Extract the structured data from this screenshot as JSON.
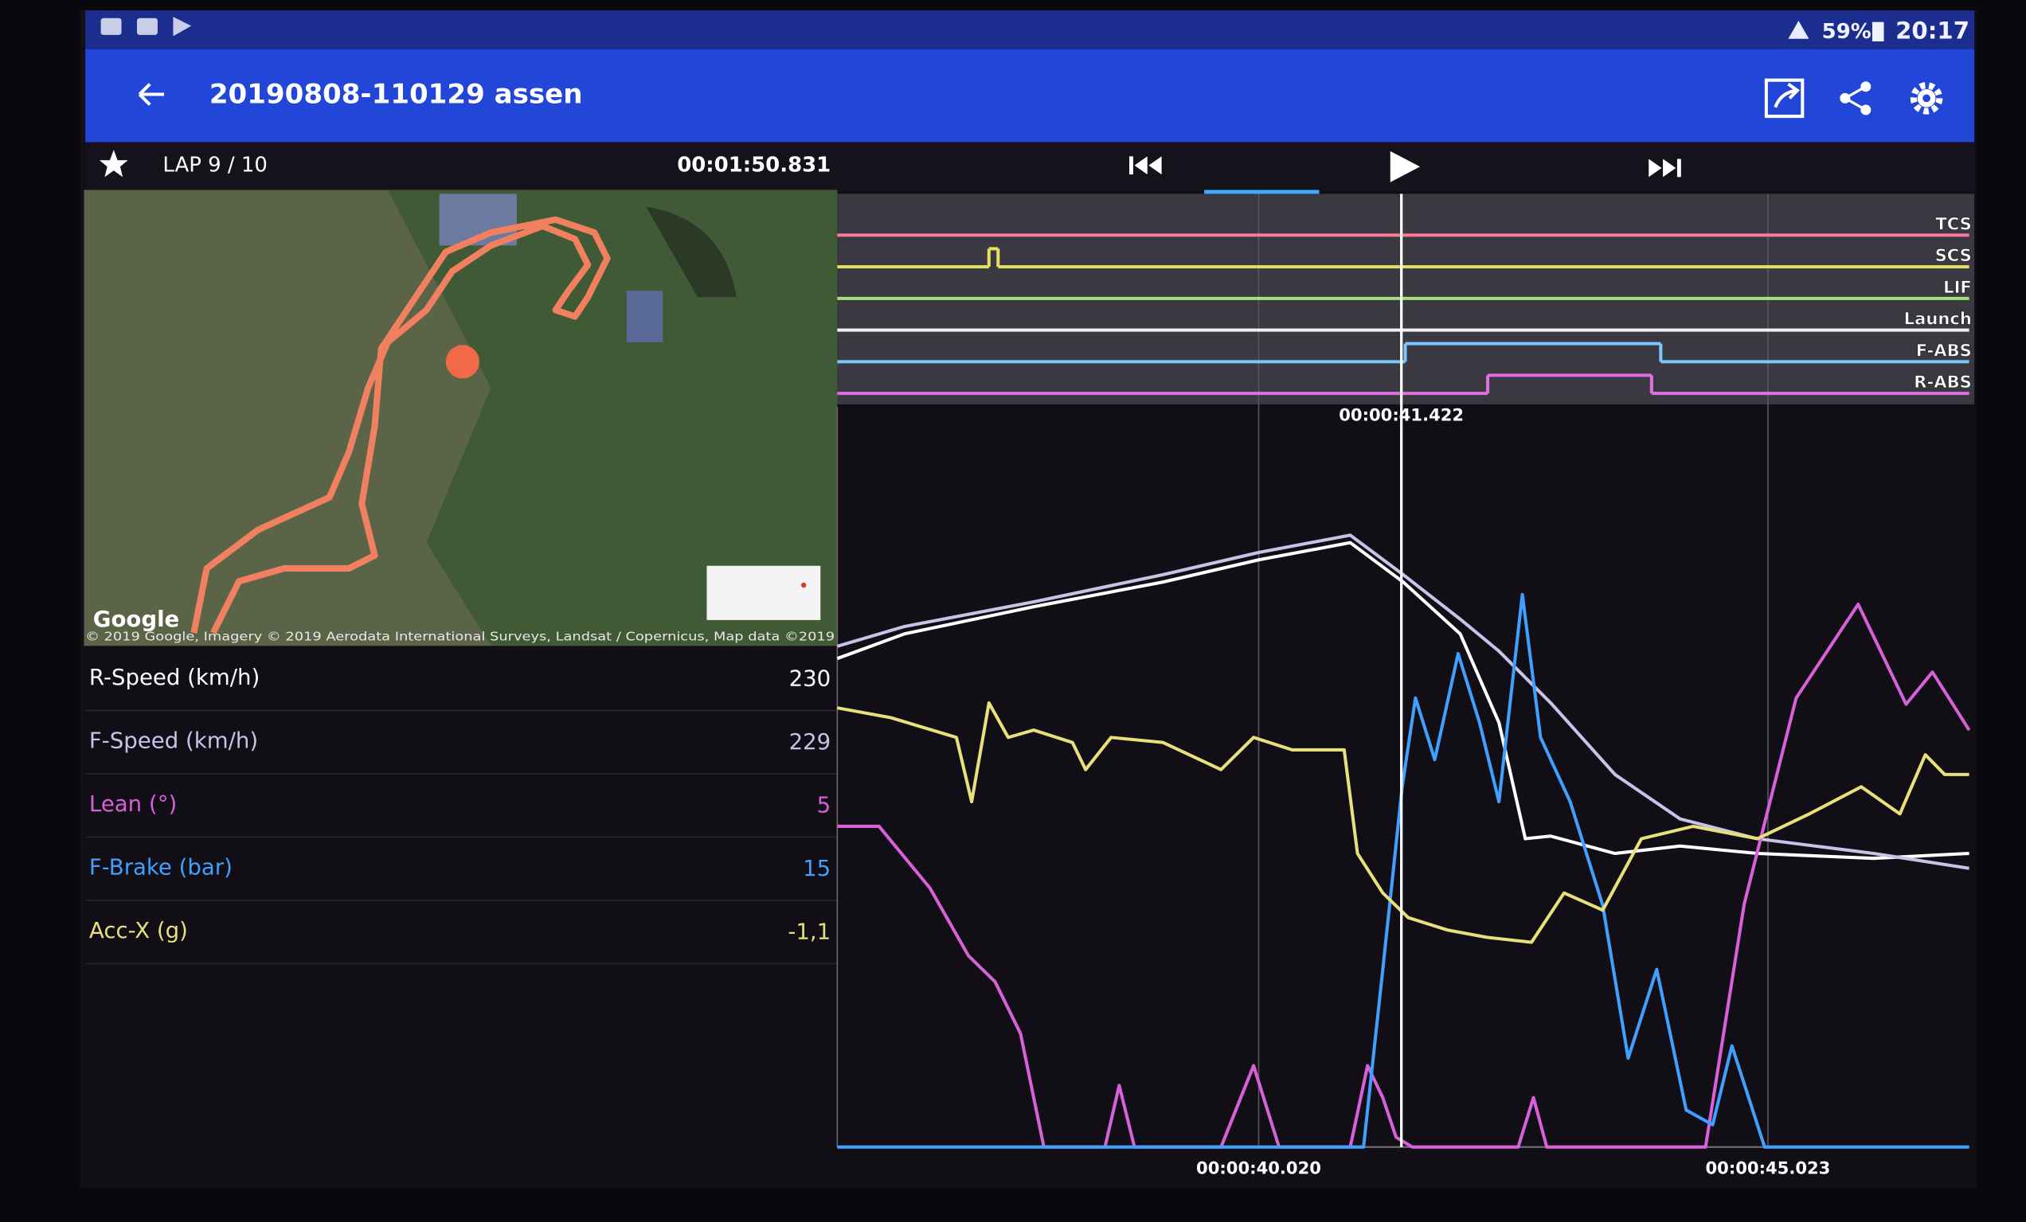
{
  "status_bar": {
    "battery": "59%",
    "time": "20:17"
  },
  "app_bar": {
    "title": "20190808-110129 assen"
  },
  "toolbar": {
    "lap": "LAP 9 / 10",
    "lap_time": "00:01:50.831"
  },
  "map": {
    "attribution": "Google",
    "copyright": "© 2019 Google, Imagery © 2019 Aerodata International Surveys, Landsat / Copernicus, Map data ©2019"
  },
  "readouts": [
    {
      "label": "R-Speed (km/h)",
      "value": "230",
      "color": "#ffffff"
    },
    {
      "label": "F-Speed (km/h)",
      "value": "229",
      "color": "#c9c2e8"
    },
    {
      "label": "Lean (°)",
      "value": "5",
      "color": "#d860d8"
    },
    {
      "label": "F-Brake (bar)",
      "value": "15",
      "color": "#3fa0ff"
    },
    {
      "label": "Acc-X (g)",
      "value": "-1,1",
      "color": "#e8e07a"
    }
  ],
  "chart": {
    "type": "line",
    "xlim": [
      35.88,
      47.0
    ],
    "xticks": [
      {
        "value": 40.02,
        "label": "00:00:40.020"
      },
      {
        "value": 45.023,
        "label": "00:00:45.023"
      }
    ],
    "cursor": {
      "value": 41.422,
      "label": "00:00:41.422"
    },
    "channels": [
      {
        "label": "TCS",
        "color": "#ff7a9a",
        "x": [
          35.88
        ],
        "values": [
          0
        ]
      },
      {
        "label": "SCS",
        "color": "#e6e060",
        "x": [
          35.88,
          37.37,
          37.46
        ],
        "values": [
          0,
          1,
          0
        ]
      },
      {
        "label": "LIF",
        "color": "#a6e07a",
        "x": [
          35.88
        ],
        "values": [
          0
        ]
      },
      {
        "label": "Launch",
        "color": "#f2f2f2",
        "x": [
          35.88
        ],
        "values": [
          0
        ]
      },
      {
        "label": "F-ABS",
        "color": "#7ac8ff",
        "x": [
          35.88,
          41.46,
          43.97
        ],
        "values": [
          0,
          1,
          0
        ]
      },
      {
        "label": "R-ABS",
        "color": "#e070e0",
        "x": [
          35.88,
          42.27,
          43.88
        ],
        "values": [
          0,
          1,
          0
        ]
      }
    ],
    "series": [
      {
        "color": "#ffffff",
        "ylim": [
          0,
          300
        ],
        "x": [
          35.88,
          36.54,
          37.81,
          39.08,
          40.02,
          40.92,
          41.44,
          42.0,
          42.38,
          42.64,
          42.89,
          43.52,
          44.16,
          44.92,
          46.06,
          47.0
        ],
        "values": [
          198,
          208,
          219,
          229,
          238,
          245,
          229,
          208,
          172,
          125,
          126,
          119,
          122,
          119,
          117,
          119
        ]
      },
      {
        "color": "#c9c2e8",
        "ylim": [
          0,
          300
        ],
        "x": [
          35.88,
          36.54,
          37.81,
          39.08,
          40.02,
          40.92,
          41.44,
          42.0,
          42.38,
          42.89,
          43.52,
          44.16,
          44.92,
          46.06,
          47.0
        ],
        "values": [
          203,
          211,
          221,
          232,
          241,
          248,
          232,
          214,
          201,
          180,
          151,
          133,
          125,
          119,
          113
        ]
      },
      {
        "color": "#d860d8",
        "ylim": [
          0,
          60
        ],
        "x": [
          35.88,
          36.29,
          36.79,
          37.17,
          37.43,
          37.68,
          37.91,
          38.51,
          38.65,
          38.8,
          39.65,
          39.97,
          40.22,
          40.92,
          41.09,
          41.24,
          41.37,
          41.53,
          42.57,
          42.72,
          42.85,
          44.41,
          44.79,
          45.3,
          45.91,
          46.38,
          46.64,
          47.0
        ],
        "values": [
          26,
          26,
          21,
          15.5,
          13.4,
          9.2,
          0,
          0,
          5,
          0,
          0,
          6.6,
          0,
          0,
          6.6,
          4,
          0.8,
          0,
          0,
          4,
          0,
          0,
          19.7,
          36.4,
          44,
          35.9,
          38.5,
          33.8
        ]
      },
      {
        "color": "#3fa0ff",
        "ylim": [
          0,
          30
        ],
        "x": [
          35.88,
          41.05,
          41.24,
          41.43,
          41.56,
          41.75,
          41.98,
          42.19,
          42.38,
          42.61,
          42.79,
          43.08,
          43.4,
          43.65,
          43.93,
          44.22,
          44.48,
          44.67,
          44.99,
          47.0
        ],
        "values": [
          0,
          0,
          7.2,
          14.6,
          18.2,
          15.7,
          20,
          17.2,
          14,
          22.4,
          16.6,
          14,
          9.8,
          3.6,
          7.2,
          1.5,
          0.9,
          4.1,
          0,
          0
        ]
      },
      {
        "color": "#e8e07a",
        "ylim": [
          -2,
          1
        ],
        "x": [
          35.88,
          36.41,
          37.05,
          37.2,
          37.37,
          37.56,
          37.81,
          38.19,
          38.32,
          38.57,
          39.08,
          39.65,
          39.97,
          40.35,
          40.86,
          40.99,
          41.24,
          41.49,
          41.87,
          42.26,
          42.7,
          43.02,
          43.4,
          43.78,
          44.29,
          44.92,
          45.43,
          45.94,
          46.32,
          46.57,
          46.76,
          47.0
        ],
        "values": [
          -0.22,
          -0.26,
          -0.34,
          -0.6,
          -0.2,
          -0.34,
          -0.31,
          -0.36,
          -0.47,
          -0.34,
          -0.36,
          -0.47,
          -0.34,
          -0.39,
          -0.39,
          -0.81,
          -0.97,
          -1.07,
          -1.12,
          -1.15,
          -1.17,
          -0.97,
          -1.04,
          -0.75,
          -0.7,
          -0.75,
          -0.65,
          -0.54,
          -0.65,
          -0.41,
          -0.49,
          -0.49
        ]
      }
    ]
  }
}
